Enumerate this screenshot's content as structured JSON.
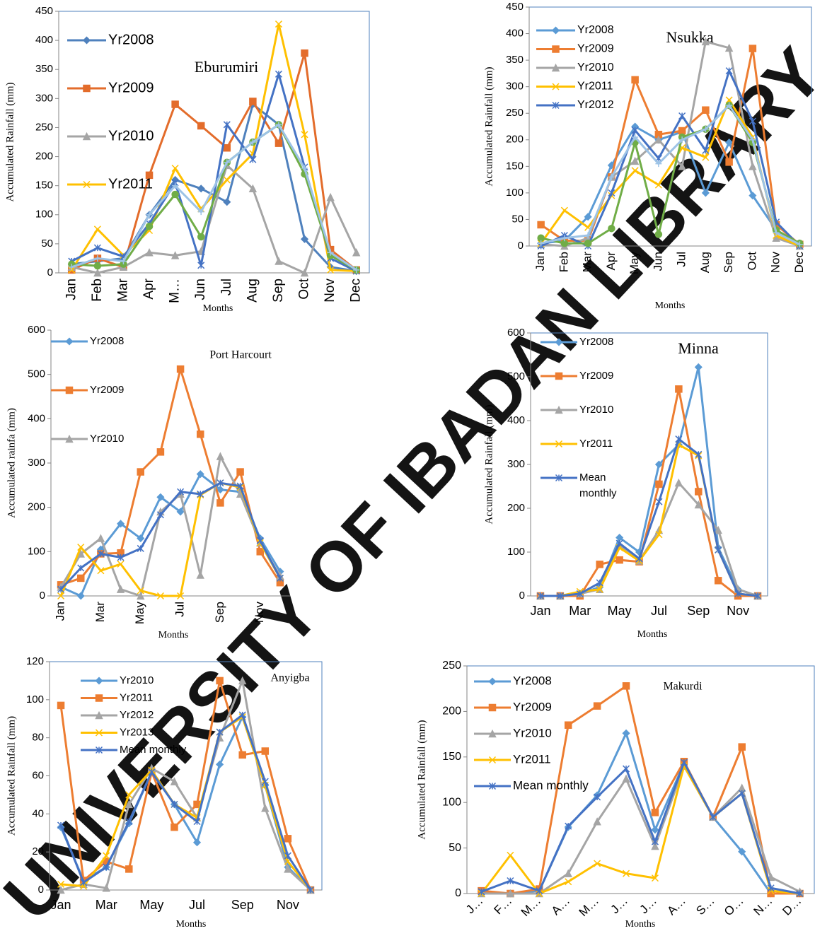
{
  "watermark": "UNIVERSITY OF IBADAN LIBRARY",
  "chart_data": [
    {
      "type": "line",
      "title": "Eburumiri",
      "x_label": "Months",
      "y_label": "Accumulated Rainfall (mm)",
      "categories": [
        "Jan",
        "Feb",
        "Mar",
        "Apr",
        "M…",
        "Jun",
        "Jul",
        "Aug",
        "Sep",
        "Oct",
        "Nov",
        "Dec"
      ],
      "ylim": [
        0,
        450
      ],
      "yticks": [
        0,
        50,
        100,
        150,
        200,
        250,
        300,
        350,
        400,
        450
      ],
      "series": [
        {
          "name": "Yr2008",
          "color": "#4f81bd",
          "marker": "diamond",
          "values": [
            15,
            20,
            25,
            100,
            160,
            145,
            122,
            290,
            255,
            58,
            10,
            3
          ]
        },
        {
          "name": "Yr2009",
          "color": "#e36c2b",
          "marker": "square",
          "values": [
            5,
            25,
            10,
            168,
            290,
            253,
            215,
            295,
            223,
            378,
            40,
            5
          ]
        },
        {
          "name": "Yr2010",
          "color": "#a5a5a5",
          "marker": "triangle",
          "values": [
            10,
            0,
            10,
            35,
            30,
            37,
            185,
            145,
            20,
            0,
            130,
            35
          ]
        },
        {
          "name": "Yr2011",
          "color": "#ffc000",
          "marker": "x",
          "values": [
            5,
            75,
            30,
            73,
            180,
            110,
            160,
            205,
            428,
            238,
            5,
            3
          ]
        },
        {
          "color": "#4472c4",
          "marker": "star",
          "values": [
            20,
            43,
            28,
            85,
            155,
            13,
            255,
            195,
            342,
            182,
            25,
            3
          ]
        },
        {
          "color": "#70ad47",
          "marker": "circle",
          "values": [
            15,
            12,
            15,
            80,
            135,
            62,
            190,
            225,
            255,
            170,
            30,
            5
          ]
        },
        {
          "color": "#9dc3e6",
          "marker": "plus",
          "values": [
            10,
            25,
            20,
            100,
            150,
            105,
            190,
            225,
            255,
            180,
            35,
            5
          ]
        }
      ]
    },
    {
      "type": "line",
      "title": "Nsukka",
      "x_label": "Months",
      "y_label": "Accumulated Rainfall (mm)",
      "categories": [
        "Jan",
        "Feb",
        "Mar",
        "Apr",
        "May",
        "Jun",
        "Jul",
        "Aug",
        "Sep",
        "Oct",
        "Nov",
        "Dec"
      ],
      "ylim": [
        0,
        450
      ],
      "yticks": [
        0,
        50,
        100,
        150,
        200,
        250,
        300,
        350,
        400,
        450
      ],
      "series": [
        {
          "name": "Yr2008",
          "color": "#5b9bd5",
          "marker": "diamond",
          "values": [
            5,
            10,
            55,
            152,
            225,
            200,
            215,
            100,
            195,
            95,
            30,
            5
          ]
        },
        {
          "name": "Yr2009",
          "color": "#ed7d31",
          "marker": "square",
          "values": [
            40,
            10,
            10,
            130,
            313,
            210,
            217,
            256,
            158,
            372,
            40,
            3
          ]
        },
        {
          "name": "Yr2010",
          "color": "#a5a5a5",
          "marker": "triangle",
          "values": [
            3,
            0,
            15,
            130,
            160,
            200,
            150,
            385,
            373,
            150,
            15,
            0
          ]
        },
        {
          "name": "Yr2011",
          "color": "#ffc000",
          "marker": "x",
          "values": [
            5,
            67,
            35,
            95,
            142,
            115,
            185,
            167,
            275,
            205,
            20,
            0
          ]
        },
        {
          "name": "Yr2012",
          "color": "#4472c4",
          "marker": "star",
          "values": [
            0,
            20,
            0,
            100,
            218,
            165,
            245,
            180,
            330,
            235,
            45,
            0
          ]
        },
        {
          "color": "#70ad47",
          "marker": "circle",
          "values": [
            15,
            5,
            5,
            33,
            195,
            22,
            205,
            220,
            265,
            195,
            30,
            5
          ]
        },
        {
          "color": "#9dc3e6",
          "marker": "plus",
          "values": [
            5,
            15,
            20,
            130,
            205,
            155,
            200,
            220,
            265,
            200,
            25,
            3
          ]
        }
      ]
    },
    {
      "type": "line",
      "title": "Port Harcourt",
      "x_label": "Months",
      "y_label": "Accumulated rainfa (mm)",
      "categories": [
        "Jan",
        null,
        "Mar",
        null,
        "May",
        null,
        "Jul",
        null,
        "Sep",
        null,
        "Nov",
        null
      ],
      "ylim": [
        0,
        600
      ],
      "yticks": [
        0,
        100,
        200,
        300,
        400,
        500,
        600
      ],
      "series": [
        {
          "name": "Yr2008",
          "color": "#5b9bd5",
          "marker": "diamond",
          "values": [
            20,
            0,
            105,
            163,
            130,
            223,
            190,
            275,
            240,
            235,
            130,
            55
          ]
        },
        {
          "name": "Yr2009",
          "color": "#ed7d31",
          "marker": "square",
          "values": [
            25,
            40,
            95,
            97,
            280,
            325,
            512,
            365,
            210,
            280,
            100,
            30
          ]
        },
        {
          "name": "Yr2010",
          "color": "#a5a5a5",
          "marker": "triangle",
          "values": [
            20,
            95,
            130,
            15,
            0,
            190,
            230,
            47,
            315,
            230,
            120,
            45
          ]
        },
        {
          "color": "#ffc000",
          "marker": "x",
          "values": [
            0,
            110,
            57,
            72,
            12,
            0,
            0,
            228,
            255,
            245,
            120,
            40
          ]
        },
        {
          "color": "#4472c4",
          "marker": "star",
          "values": [
            15,
            63,
            95,
            87,
            107,
            183,
            235,
            230,
            255,
            248,
            125,
            40
          ]
        }
      ]
    },
    {
      "type": "line",
      "title": "Minna",
      "x_label": "Months",
      "y_label": "Accumulated Rainfall (mm)",
      "categories": [
        "Jan",
        null,
        "Mar",
        null,
        "May",
        null,
        "Jul",
        null,
        "Sep",
        null,
        "Nov",
        null
      ],
      "ylim": [
        0,
        600
      ],
      "yticks": [
        0,
        100,
        200,
        300,
        400,
        500,
        600
      ],
      "series": [
        {
          "name": "Yr2008",
          "color": "#5b9bd5",
          "marker": "diamond",
          "values": [
            0,
            0,
            5,
            20,
            133,
            100,
            300,
            345,
            522,
            110,
            15,
            0
          ]
        },
        {
          "name": "Yr2009",
          "color": "#ed7d31",
          "marker": "square",
          "values": [
            0,
            0,
            0,
            72,
            82,
            78,
            255,
            472,
            238,
            35,
            0,
            0
          ]
        },
        {
          "name": "Yr2010",
          "color": "#a5a5a5",
          "marker": "triangle",
          "values": [
            0,
            0,
            5,
            15,
            115,
            80,
            150,
            258,
            208,
            150,
            15,
            0
          ]
        },
        {
          "name": "Yr2011",
          "color": "#ffc000",
          "marker": "x",
          "values": [
            0,
            0,
            10,
            15,
            110,
            80,
            140,
            345,
            320,
            105,
            5,
            0
          ]
        },
        {
          "name": "Mean monthly",
          "color": "#4472c4",
          "marker": "star",
          "values": [
            0,
            0,
            5,
            30,
            120,
            85,
            215,
            358,
            323,
            105,
            5,
            0
          ]
        }
      ]
    },
    {
      "type": "line",
      "title": "Anyigba",
      "x_label": "Months",
      "y_label": "Accumulated Rainfall (mm)",
      "categories": [
        "Jan",
        null,
        "Mar",
        null,
        "May",
        null,
        "Jul",
        null,
        "Sep",
        null,
        "Nov",
        null
      ],
      "ylim": [
        0,
        120
      ],
      "yticks": [
        0,
        20,
        40,
        60,
        80,
        100,
        120
      ],
      "series": [
        {
          "name": "Yr2010",
          "color": "#5b9bd5",
          "marker": "diamond",
          "values": [
            33,
            5,
            12,
            35,
            62,
            45,
            25,
            66,
            91,
            55,
            12,
            0
          ]
        },
        {
          "name": "Yr2011",
          "color": "#ed7d31",
          "marker": "square",
          "values": [
            97,
            5,
            15,
            11,
            62,
            33,
            45,
            110,
            71,
            73,
            27,
            0
          ]
        },
        {
          "name": "Yr2012",
          "color": "#a5a5a5",
          "marker": "triangle",
          "values": [
            0,
            3,
            1,
            45,
            64,
            57,
            38,
            80,
            110,
            43,
            11,
            0
          ]
        },
        {
          "name": "Yr2013",
          "color": "#ffc000",
          "marker": "x",
          "values": [
            3,
            2,
            18,
            50,
            63,
            45,
            38,
            83,
            91,
            55,
            15,
            0
          ]
        },
        {
          "name": "Mean monthly",
          "color": "#4472c4",
          "marker": "star",
          "values": [
            34,
            4,
            12,
            36,
            62,
            45,
            36,
            83,
            92,
            57,
            18,
            0
          ]
        }
      ]
    },
    {
      "type": "line",
      "title": "Makurdi",
      "x_label": "Months",
      "y_label": "Accumulated Rainfall (mm)",
      "categories": [
        "J…",
        "F…",
        "M…",
        "A…",
        "M…",
        "J…",
        "J…",
        "A…",
        "S…",
        "O…",
        "N…",
        "D…"
      ],
      "ylim": [
        0,
        250
      ],
      "yticks": [
        0,
        50,
        100,
        150,
        200,
        250
      ],
      "series": [
        {
          "name": "Yr2008",
          "color": "#5b9bd5",
          "marker": "diamond",
          "values": [
            2,
            0,
            3,
            73,
            108,
            176,
            70,
            143,
            84,
            46,
            0,
            0
          ]
        },
        {
          "name": "Yr2009",
          "color": "#ed7d31",
          "marker": "square",
          "values": [
            3,
            0,
            5,
            185,
            206,
            228,
            89,
            145,
            84,
            161,
            0,
            0
          ]
        },
        {
          "name": "Yr2010",
          "color": "#a5a5a5",
          "marker": "triangle",
          "values": [
            0,
            0,
            0,
            22,
            79,
            126,
            52,
            140,
            84,
            116,
            18,
            2
          ]
        },
        {
          "name": "Yr2011",
          "color": "#ffc000",
          "marker": "x",
          "values": [
            0,
            42,
            0,
            13,
            33,
            22,
            17,
            140,
            84,
            110,
            3,
            0
          ]
        },
        {
          "name": "Mean monthly",
          "color": "#4472c4",
          "marker": "star",
          "values": [
            2,
            14,
            3,
            74,
            106,
            137,
            57,
            144,
            84,
            110,
            6,
            0
          ]
        }
      ]
    }
  ]
}
